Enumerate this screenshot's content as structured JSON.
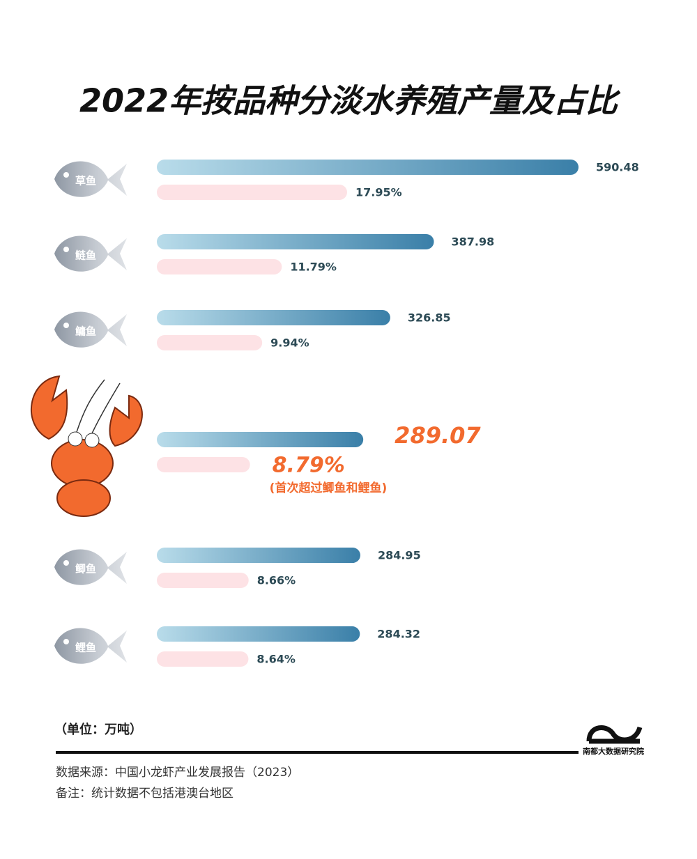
{
  "chart_data": {
    "type": "bar",
    "orientation": "horizontal",
    "title": "2022年按品种分淡水养殖产量及占比",
    "categories": [
      "草鱼",
      "鲢鱼",
      "鳙鱼",
      null,
      "鲫鱼",
      "鲤鱼"
    ],
    "series": [
      {
        "color": "#3a7fa8",
        "values": [
          590.48,
          387.98,
          326.85,
          289.07,
          284.95,
          284.32
        ]
      },
      {
        "color": "#fde2e5",
        "values": [
          17.95,
          11.79,
          9.94,
          8.79,
          8.66,
          8.64
        ],
        "value_labels": [
          "17.95%",
          "11.79%",
          "9.94%",
          "8.79%",
          "8.66%",
          "8.64%"
        ]
      }
    ],
    "highlight_color": "#f26a2e",
    "annotation": "(首次超过鲫鱼和鲤鱼)",
    "unit": "（单位：万吨）",
    "source": "数据来源：中国小龙虾产业发展报告（2023）",
    "note": "备注：统计数据不包括港澳台地区",
    "brand": "南都大数据研究院"
  }
}
